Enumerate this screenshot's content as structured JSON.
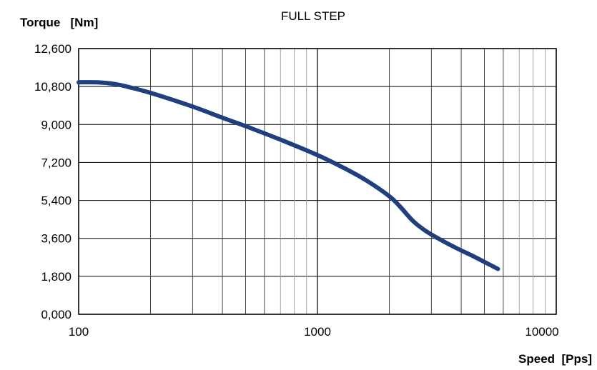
{
  "chart_data": {
    "type": "line",
    "title": "FULL STEP",
    "ylabel": "Torque   [Nm]",
    "xlabel": "Speed  [Pps]",
    "xscale": "log",
    "xlim": [
      100,
      10000
    ],
    "ylim": [
      0,
      12600
    ],
    "grid": true,
    "y_tick_labels": [
      "12,600",
      "10,800",
      "9,000",
      "7,200",
      "5,400",
      "3,600",
      "1,800",
      "0,000"
    ],
    "y_tick_values": [
      12600,
      10800,
      9000,
      7200,
      5400,
      3600,
      1800,
      0
    ],
    "x_tick_labels": [
      "100",
      "1000",
      "10000"
    ],
    "x_tick_values": [
      100,
      1000,
      10000
    ],
    "series": [
      {
        "color": "#1f3f7f",
        "x": [
          100,
          120,
          140,
          160,
          200,
          300,
          400,
          500,
          700,
          1000,
          1300,
          1600,
          2000,
          2200,
          2500,
          2800,
          3200,
          3800,
          4500,
          5700
        ],
        "y": [
          11000,
          11000,
          10930,
          10790,
          10500,
          9850,
          9320,
          8920,
          8280,
          7550,
          6920,
          6350,
          5600,
          5150,
          4450,
          4000,
          3600,
          3150,
          2750,
          2150
        ]
      }
    ]
  }
}
